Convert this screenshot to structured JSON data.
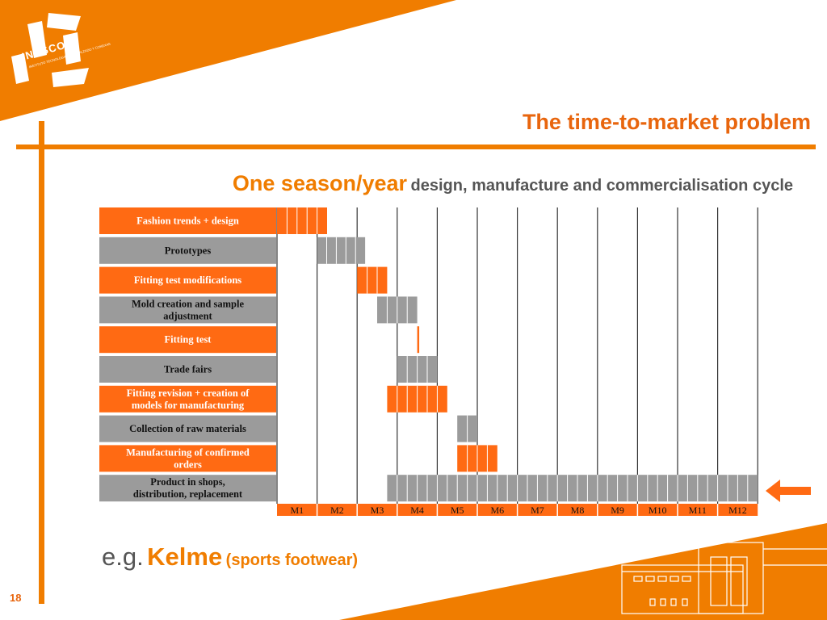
{
  "slide": {
    "logo_text": "INESCOP",
    "logo_subtext": "INSTITUTO TECNOLÓGICO DEL CALZADO Y CONEXAS",
    "title": "The time-to-market problem",
    "subtitle_emphasis": "One season/year",
    "subtitle_rest": "design, manufacture and commercialisation cycle",
    "example_prefix": "e.g.",
    "example_brand": "Kelme",
    "example_note": "(sports footwear)",
    "page_number": "18"
  },
  "colors": {
    "accent": "#f07d00",
    "orange_row": "#ff6a13",
    "gray_row": "#9b9b9b"
  },
  "chart_data": {
    "type": "gantt",
    "title": "",
    "months": [
      "M1",
      "M2",
      "M3",
      "M4",
      "M5",
      "M6",
      "M7",
      "M8",
      "M9",
      "M10",
      "M11",
      "M12"
    ],
    "tasks": [
      {
        "label": "Fashion trends + design",
        "color": "orange",
        "start": 0.0,
        "end": 1.25,
        "cells": 5
      },
      {
        "label": "Prototypes",
        "color": "gray",
        "start": 1.0,
        "end": 2.2,
        "cells": 5
      },
      {
        "label": "Fitting test modifications",
        "color": "orange",
        "start": 2.0,
        "end": 2.75,
        "cells": 3
      },
      {
        "label": "Mold creation and sample adjustment",
        "color": "gray",
        "start": 2.5,
        "end": 3.5,
        "cells": 4
      },
      {
        "label": "Fitting test",
        "color": "orange",
        "start": 3.5,
        "end": 3.55,
        "cells": 1
      },
      {
        "label": "Trade fairs",
        "color": "gray",
        "start": 3.0,
        "end": 4.0,
        "cells": 4
      },
      {
        "label": "Fitting revision + creation of models for manufacturing",
        "color": "orange",
        "start": 2.75,
        "end": 4.25,
        "cells": 6
      },
      {
        "label": "Collection of raw materials",
        "color": "gray",
        "start": 4.5,
        "end": 5.0,
        "cells": 2
      },
      {
        "label": "Manufacturing of confirmed orders",
        "color": "orange",
        "start": 4.5,
        "end": 5.5,
        "cells": 4
      },
      {
        "label": "Product in shops, distribution, replacement",
        "color": "gray",
        "start": 2.75,
        "end": 12.0,
        "cells": 37
      }
    ]
  }
}
